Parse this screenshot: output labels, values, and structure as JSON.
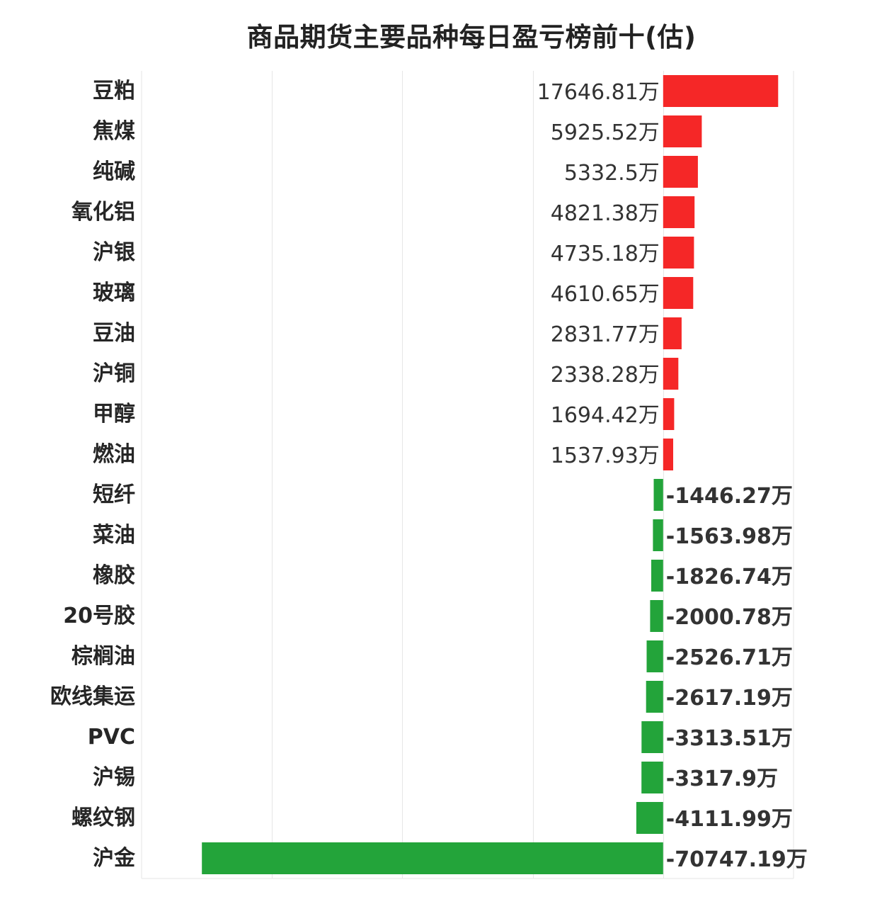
{
  "chart_data": {
    "type": "bar",
    "orientation": "horizontal",
    "title": "商品期货主要品种每日盈亏榜前十(估)",
    "unit": "万",
    "categories": [
      "豆粕",
      "焦煤",
      "纯碱",
      "氧化铝",
      "沪银",
      "玻璃",
      "豆油",
      "沪铜",
      "甲醇",
      "燃油",
      "短纤",
      "菜油",
      "橡胶",
      "20号胶",
      "棕榈油",
      "欧线集运",
      "PVC",
      "沪锡",
      "螺纹钢",
      "沪金"
    ],
    "values": [
      17646.81,
      5925.52,
      5332.5,
      4821.38,
      4735.18,
      4610.65,
      2831.77,
      2338.28,
      1694.42,
      1537.93,
      -1446.27,
      -1563.98,
      -1826.74,
      -2000.78,
      -2526.71,
      -2617.19,
      -3313.51,
      -3317.9,
      -4111.99,
      -70747.19
    ],
    "value_labels": [
      "17646.81万",
      "5925.52万",
      "5332.5万",
      "4821.38万",
      "4735.18万",
      "4610.65万",
      "2831.77万",
      "2338.28万",
      "1694.42万",
      "1537.93万",
      "-1446.27万",
      "-1563.98万",
      "-1826.74万",
      "-2000.78万",
      "-2526.71万",
      "-2617.19万",
      "-3313.51万",
      "-3317.9万",
      "-4111.99万",
      "-70747.19万"
    ],
    "xlim": [
      -80000,
      20000
    ],
    "grid": true,
    "legend": "none",
    "colors": {
      "positive": "#f52727",
      "negative": "#23a43a",
      "grid": "#e6e6e6",
      "label": "#262626",
      "value_text": "#333333"
    }
  }
}
